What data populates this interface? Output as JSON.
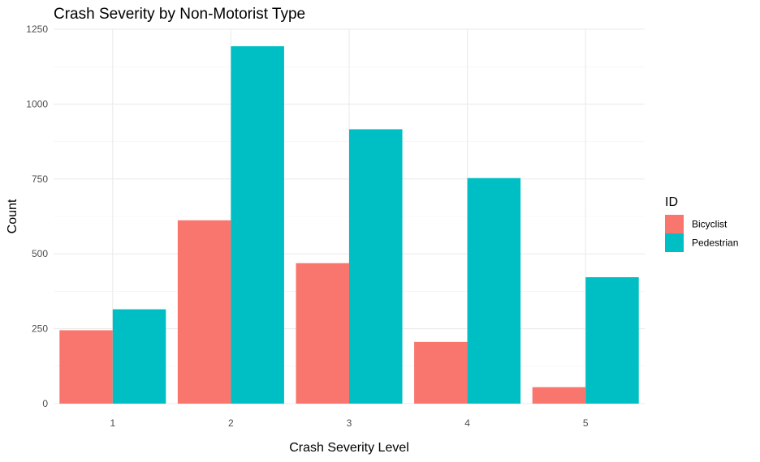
{
  "chart_data": {
    "type": "bar",
    "title": "Crash Severity by Non-Motorist Type",
    "xlabel": "Crash Severity Level",
    "ylabel": "Count",
    "categories": [
      "1",
      "2",
      "3",
      "4",
      "5"
    ],
    "series": [
      {
        "name": "Bicyclist",
        "color": "#F8766D",
        "values": [
          245,
          612,
          469,
          206,
          55
        ]
      },
      {
        "name": "Pedestrian",
        "color": "#00BFC4",
        "values": [
          315,
          1193,
          916,
          753,
          422
        ]
      }
    ],
    "ylim": [
      0,
      1250
    ],
    "yticks": [
      0,
      250,
      500,
      750,
      1000,
      1250
    ],
    "legend": {
      "title": "ID",
      "position": "right"
    },
    "grid": true
  }
}
